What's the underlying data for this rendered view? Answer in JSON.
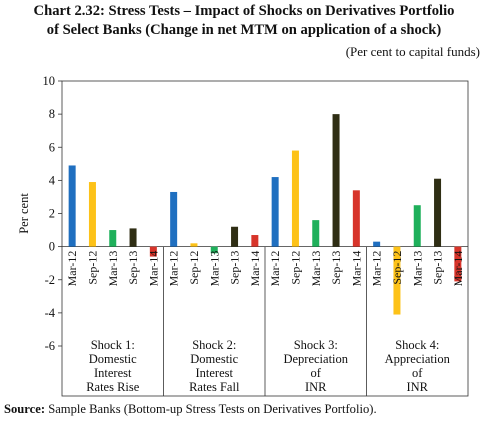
{
  "title_line1": "Chart 2.32: Stress Tests – Impact of Shocks on Derivatives Portfolio",
  "title_line2": "of Select Banks (Change in net MTM on application of a shock)",
  "units": "(Per cent to capital funds)",
  "source_label": "Source:",
  "source_text": "Sample Banks (Bottom-up Stress Tests on Derivatives Portfolio).",
  "chart_data": {
    "type": "bar",
    "ylabel": "Per cent",
    "ylim": [
      -6,
      10
    ],
    "yticks": [
      -6,
      -4,
      -2,
      0,
      2,
      4,
      6,
      8,
      10
    ],
    "categories": [
      "Mar-12",
      "Sep-12",
      "Mar-13",
      "Sep-13",
      "Mar-14"
    ],
    "colors": [
      "#1f6fc0",
      "#fdc218",
      "#1fb05b",
      "#2f2e14",
      "#d7342a"
    ],
    "groups": [
      {
        "label": [
          "Shock 1:",
          "Domestic",
          "Interest",
          "Rates Rise"
        ],
        "values": [
          4.9,
          3.9,
          1.0,
          1.1,
          -0.6
        ]
      },
      {
        "label": [
          "Shock 2:",
          "Domestic",
          "Interest",
          "Rates Fall"
        ],
        "values": [
          3.3,
          0.2,
          -0.4,
          1.2,
          0.7
        ]
      },
      {
        "label": [
          "Shock 3:",
          "Depreciation",
          "of",
          "INR"
        ],
        "values": [
          4.2,
          5.8,
          1.6,
          8.0,
          3.4
        ]
      },
      {
        "label": [
          "Shock 4:",
          "Appreciation",
          "of",
          "INR"
        ],
        "values": [
          0.3,
          -4.1,
          2.5,
          4.1,
          -2.1
        ]
      }
    ]
  }
}
